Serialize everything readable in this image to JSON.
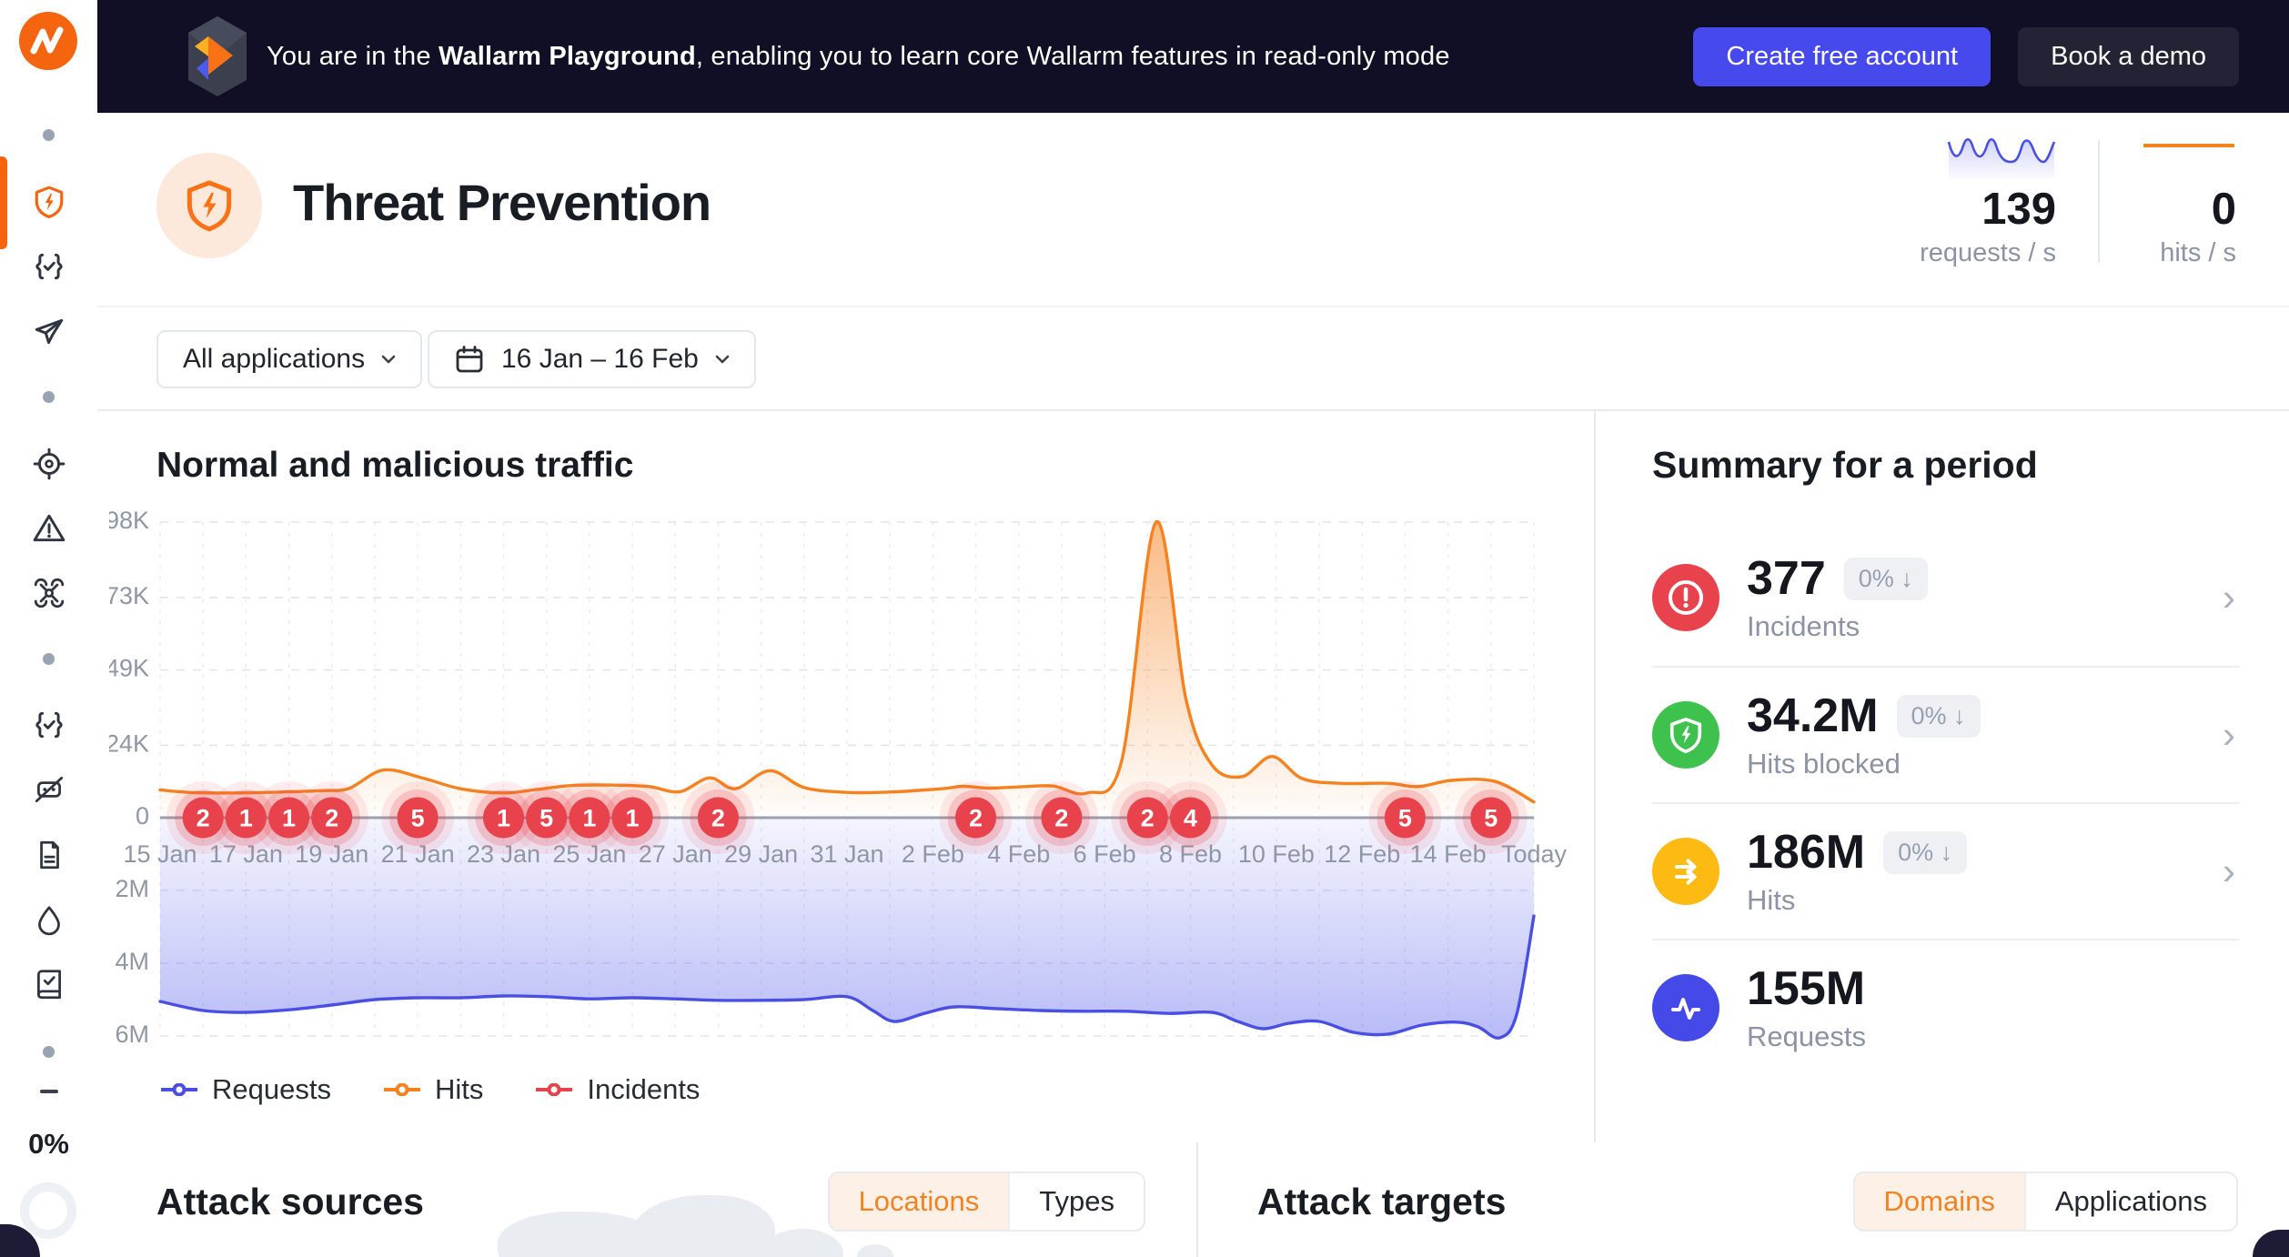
{
  "banner": {
    "message_prefix": "You are in the ",
    "message_bold": "Wallarm Playground",
    "message_suffix": ", enabling you to learn core Wallarm features in read-only mode",
    "create_account_button": "Create free account",
    "book_demo_button": "Book a demo"
  },
  "sidebar": {
    "usage_label": "0%"
  },
  "header": {
    "title": "Threat Prevention",
    "requests_per_s": {
      "value": "139",
      "label": "requests / s"
    },
    "hits_per_s": {
      "value": "0",
      "label": "hits / s"
    }
  },
  "filters": {
    "applications_label": "All applications",
    "date_range_label": "16 Jan – 16 Feb"
  },
  "traffic_panel": {
    "title": "Normal and malicious traffic",
    "legend": [
      {
        "label": "Requests",
        "color": "#4a4fe4"
      },
      {
        "label": "Hits",
        "color": "#f6821f"
      },
      {
        "label": "Incidents",
        "color": "#e8434c"
      }
    ]
  },
  "chart_data": {
    "type": "area",
    "title": "Normal and malicious traffic",
    "x_ticks": [
      {
        "label": "15 Jan",
        "day": 0
      },
      {
        "label": "17 Jan",
        "day": 2
      },
      {
        "label": "19 Jan",
        "day": 4
      },
      {
        "label": "21 Jan",
        "day": 6
      },
      {
        "label": "23 Jan",
        "day": 8
      },
      {
        "label": "25 Jan",
        "day": 10
      },
      {
        "label": "27 Jan",
        "day": 12
      },
      {
        "label": "29 Jan",
        "day": 14
      },
      {
        "label": "31 Jan",
        "day": 16
      },
      {
        "label": "2 Feb",
        "day": 18
      },
      {
        "label": "4 Feb",
        "day": 20
      },
      {
        "label": "6 Feb",
        "day": 22
      },
      {
        "label": "8 Feb",
        "day": 24
      },
      {
        "label": "10 Feb",
        "day": 26
      },
      {
        "label": "12 Feb",
        "day": 28
      },
      {
        "label": "14 Feb",
        "day": 30
      },
      {
        "label": "Today",
        "day": 32
      }
    ],
    "y_axis_top": {
      "unit": "K",
      "max": 98,
      "ticks": [
        {
          "label": "98K",
          "value": 98
        },
        {
          "label": "73K",
          "value": 73
        },
        {
          "label": "49K",
          "value": 49
        },
        {
          "label": "24K",
          "value": 24
        },
        {
          "label": "0",
          "value": 0
        }
      ]
    },
    "y_axis_bottom": {
      "unit": "M",
      "max": 6,
      "ticks": [
        {
          "label": "2M",
          "value": 2
        },
        {
          "label": "4M",
          "value": 4
        },
        {
          "label": "6M",
          "value": 6
        }
      ]
    },
    "series": [
      {
        "name": "Hits",
        "axis": "top",
        "unit": "K",
        "color": "#f6821f",
        "points": [
          [
            0,
            9.2
          ],
          [
            0.8,
            8.3
          ],
          [
            1.8,
            8.2
          ],
          [
            2.8,
            8.5
          ],
          [
            3.8,
            9.0
          ],
          [
            4.4,
            9.7
          ],
          [
            5.2,
            15.8
          ],
          [
            6.1,
            13.2
          ],
          [
            7,
            9.6
          ],
          [
            8,
            8.2
          ],
          [
            8.8,
            9.4
          ],
          [
            9.6,
            10.7
          ],
          [
            10.6,
            10.8
          ],
          [
            11.4,
            10.3
          ],
          [
            12.1,
            8.6
          ],
          [
            12.8,
            13.2
          ],
          [
            13.4,
            9.6
          ],
          [
            14.2,
            15.6
          ],
          [
            15,
            10.0
          ],
          [
            16,
            8.4
          ],
          [
            17,
            8.5
          ],
          [
            18.2,
            9.6
          ],
          [
            18.7,
            10.4
          ],
          [
            19.3,
            9.8
          ],
          [
            20,
            10.2
          ],
          [
            20.8,
            10.5
          ],
          [
            21.6,
            8.2
          ],
          [
            22.4,
            19.0
          ],
          [
            23.2,
            98.0
          ],
          [
            23.9,
            39.0
          ],
          [
            24.5,
            17.5
          ],
          [
            25.2,
            13.6
          ],
          [
            25.9,
            20.3
          ],
          [
            26.6,
            13.0
          ],
          [
            27.5,
            11.4
          ],
          [
            28.6,
            11.4
          ],
          [
            29.3,
            10.3
          ],
          [
            30.1,
            12.4
          ],
          [
            31.1,
            12.0
          ],
          [
            32,
            5.2
          ]
        ]
      },
      {
        "name": "Requests",
        "axis": "bottom",
        "unit": "M",
        "color": "#4a4fe4",
        "points": [
          [
            0,
            5.05
          ],
          [
            1,
            5.3
          ],
          [
            2,
            5.35
          ],
          [
            3,
            5.28
          ],
          [
            4,
            5.15
          ],
          [
            5,
            5.0
          ],
          [
            6,
            4.95
          ],
          [
            7,
            4.95
          ],
          [
            8,
            4.9
          ],
          [
            9,
            4.92
          ],
          [
            10,
            4.98
          ],
          [
            11,
            4.95
          ],
          [
            12,
            4.98
          ],
          [
            13,
            5.02
          ],
          [
            14,
            5.02
          ],
          [
            15,
            5.0
          ],
          [
            16,
            4.92
          ],
          [
            16.6,
            5.3
          ],
          [
            17.1,
            5.6
          ],
          [
            17.8,
            5.38
          ],
          [
            18.5,
            5.2
          ],
          [
            19.5,
            5.25
          ],
          [
            20.5,
            5.3
          ],
          [
            21.5,
            5.32
          ],
          [
            22.5,
            5.32
          ],
          [
            23.5,
            5.38
          ],
          [
            24.5,
            5.35
          ],
          [
            25.1,
            5.6
          ],
          [
            25.7,
            5.8
          ],
          [
            26.3,
            5.65
          ],
          [
            27,
            5.6
          ],
          [
            27.8,
            5.9
          ],
          [
            28.6,
            5.95
          ],
          [
            29.4,
            5.7
          ],
          [
            30.2,
            5.62
          ],
          [
            30.7,
            5.75
          ],
          [
            31.2,
            6.05
          ],
          [
            31.6,
            5.4
          ],
          [
            32,
            2.7
          ]
        ]
      }
    ],
    "incidents": {
      "name": "Incidents",
      "color": "#e8434c",
      "markers": [
        {
          "day": 1,
          "count": 2
        },
        {
          "day": 2,
          "count": 1
        },
        {
          "day": 3,
          "count": 1
        },
        {
          "day": 4,
          "count": 2
        },
        {
          "day": 6,
          "count": 5
        },
        {
          "day": 8,
          "count": 1
        },
        {
          "day": 9,
          "count": 5
        },
        {
          "day": 10,
          "count": 1
        },
        {
          "day": 11,
          "count": 1
        },
        {
          "day": 13,
          "count": 2
        },
        {
          "day": 19,
          "count": 2
        },
        {
          "day": 21,
          "count": 2
        },
        {
          "day": 23,
          "count": 2
        },
        {
          "day": 24,
          "count": 4
        },
        {
          "day": 29,
          "count": 5
        },
        {
          "day": 31,
          "count": 5
        }
      ]
    }
  },
  "summary": {
    "title": "Summary for a period",
    "rows": [
      {
        "value": "377",
        "change": "0% ↓",
        "label": "Incidents",
        "color": "#e8434c"
      },
      {
        "value": "34.2M",
        "change": "0% ↓",
        "label": "Hits blocked",
        "color": "#3fc24d"
      },
      {
        "value": "186M",
        "change": "0% ↓",
        "label": "Hits",
        "color": "#fcba12"
      },
      {
        "value": "155M",
        "change": "",
        "label": "Requests",
        "color": "#4549e8"
      }
    ]
  },
  "attack_sources": {
    "title": "Attack sources",
    "tabs": [
      {
        "label": "Locations"
      },
      {
        "label": "Types"
      }
    ]
  },
  "attack_targets": {
    "title": "Attack targets",
    "tabs": [
      {
        "label": "Domains"
      },
      {
        "label": "Applications"
      }
    ]
  }
}
